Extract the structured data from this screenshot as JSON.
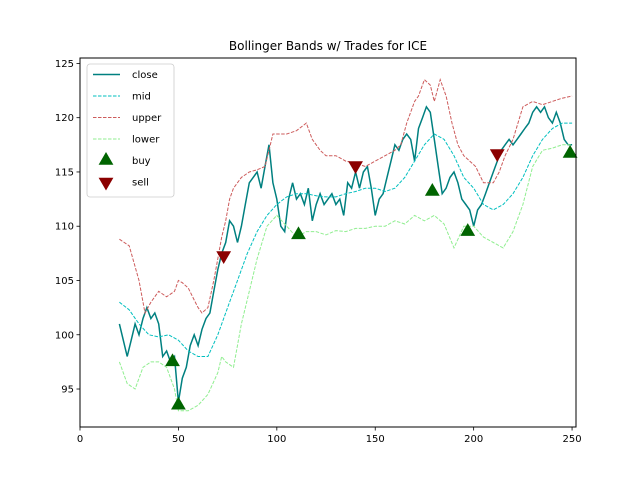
{
  "chart_data": {
    "type": "line",
    "title": "Bollinger Bands w/ Trades for ICE",
    "xlabel": "",
    "ylabel": "",
    "xlim": [
      0,
      252
    ],
    "ylim": [
      91.5,
      125.5
    ],
    "xticks": [
      0,
      50,
      100,
      150,
      200,
      250
    ],
    "yticks": [
      95,
      100,
      105,
      110,
      115,
      120,
      125
    ],
    "grid": false,
    "legend_position": "top-left",
    "series": [
      {
        "name": "close",
        "color": "#008080",
        "style": "solid",
        "x": [
          20,
          22,
          24,
          26,
          28,
          30,
          32,
          34,
          36,
          38,
          40,
          42,
          44,
          46,
          48,
          50,
          52,
          54,
          56,
          58,
          60,
          62,
          64,
          66,
          68,
          70,
          72,
          74,
          76,
          78,
          80,
          82,
          84,
          86,
          88,
          90,
          92,
          94,
          96,
          98,
          100,
          102,
          104,
          106,
          108,
          110,
          112,
          114,
          116,
          118,
          120,
          122,
          124,
          126,
          128,
          130,
          132,
          134,
          136,
          138,
          140,
          142,
          144,
          146,
          148,
          150,
          152,
          154,
          156,
          158,
          160,
          162,
          164,
          166,
          168,
          170,
          172,
          174,
          176,
          178,
          180,
          182,
          184,
          186,
          188,
          190,
          192,
          194,
          196,
          198,
          200,
          202,
          204,
          206,
          208,
          210,
          212,
          214,
          216,
          218,
          220,
          222,
          224,
          226,
          228,
          230,
          232,
          234,
          236,
          238,
          240,
          242,
          244,
          246,
          248,
          250
        ],
        "values": [
          101.0,
          99.5,
          98.0,
          99.5,
          101.0,
          100.0,
          101.5,
          102.5,
          101.5,
          102.0,
          101.0,
          98.0,
          98.5,
          97.5,
          98.0,
          93.8,
          96.0,
          97.0,
          99.0,
          100.0,
          99.0,
          100.5,
          101.5,
          102.0,
          104.0,
          106.0,
          107.5,
          108.5,
          110.5,
          110.0,
          108.5,
          110.0,
          112.0,
          114.0,
          114.5,
          115.0,
          113.5,
          115.5,
          117.5,
          114.0,
          112.5,
          110.0,
          109.5,
          112.5,
          114.0,
          112.5,
          113.0,
          112.0,
          113.5,
          110.5,
          112.0,
          113.0,
          112.0,
          112.5,
          113.0,
          112.0,
          112.5,
          111.0,
          114.0,
          113.5,
          115.0,
          113.5,
          115.0,
          115.5,
          113.5,
          111.0,
          112.5,
          113.0,
          114.5,
          116.0,
          117.5,
          117.0,
          118.0,
          118.5,
          118.0,
          116.0,
          119.0,
          120.0,
          121.0,
          120.5,
          118.0,
          115.5,
          113.0,
          113.5,
          114.5,
          115.0,
          114.0,
          112.5,
          112.0,
          111.5,
          110.0,
          111.5,
          112.0,
          113.0,
          114.0,
          115.0,
          116.0,
          117.0,
          117.5,
          118.0,
          117.5,
          118.0,
          118.5,
          119.0,
          119.5,
          120.5,
          121.0,
          120.5,
          121.0,
          120.0,
          119.5,
          120.5,
          119.5,
          118.0,
          117.5,
          117.5
        ]
      },
      {
        "name": "mid",
        "color": "#00bfbf",
        "style": "dashed",
        "x": [
          20,
          25,
          30,
          35,
          40,
          45,
          50,
          55,
          60,
          65,
          70,
          75,
          80,
          85,
          90,
          95,
          100,
          105,
          110,
          115,
          120,
          125,
          130,
          135,
          140,
          145,
          150,
          155,
          160,
          165,
          170,
          175,
          180,
          185,
          190,
          195,
          200,
          205,
          210,
          215,
          220,
          225,
          230,
          235,
          240,
          245,
          250
        ],
        "values": [
          103.0,
          102.3,
          101.0,
          100.0,
          99.8,
          100.0,
          99.5,
          98.5,
          98.0,
          98.0,
          100.0,
          102.5,
          105.0,
          107.5,
          109.5,
          111.0,
          112.0,
          112.7,
          113.0,
          113.0,
          112.8,
          112.7,
          112.7,
          113.0,
          113.2,
          113.5,
          113.5,
          113.2,
          113.5,
          114.5,
          116.0,
          117.5,
          118.5,
          118.0,
          116.5,
          114.5,
          113.5,
          112.0,
          111.5,
          112.0,
          113.0,
          114.5,
          116.5,
          118.0,
          119.0,
          119.5,
          119.5
        ]
      },
      {
        "name": "upper",
        "color": "#cd5c5c",
        "style": "dashed",
        "x": [
          20,
          25,
          30,
          33,
          36,
          40,
          44,
          48,
          50,
          52,
          55,
          58,
          60,
          62,
          65,
          68,
          70,
          72,
          74,
          76,
          78,
          82,
          86,
          90,
          94,
          96,
          98,
          100,
          105,
          110,
          115,
          118,
          120,
          122,
          125,
          130,
          135,
          140,
          145,
          150,
          155,
          160,
          163,
          166,
          170,
          172,
          175,
          178,
          180,
          183,
          186,
          189,
          192,
          195,
          198,
          201,
          205,
          210,
          213,
          216,
          220,
          225,
          230,
          235,
          240,
          245,
          250
        ],
        "values": [
          108.8,
          108.2,
          105.0,
          102.0,
          103.0,
          104.0,
          103.5,
          104.0,
          105.0,
          104.8,
          104.3,
          103.2,
          102.5,
          102.0,
          102.5,
          105.0,
          107.0,
          109.0,
          110.5,
          112.5,
          113.5,
          114.5,
          115.0,
          115.2,
          115.5,
          117.0,
          118.5,
          118.5,
          118.5,
          118.8,
          119.5,
          118.0,
          117.5,
          117.0,
          116.5,
          116.5,
          116.0,
          115.8,
          115.5,
          116.0,
          116.5,
          117.0,
          117.5,
          119.5,
          121.5,
          122.0,
          123.5,
          123.0,
          121.5,
          123.5,
          122.0,
          119.5,
          117.5,
          116.5,
          116.0,
          115.5,
          114.0,
          114.0,
          115.0,
          116.5,
          118.0,
          121.0,
          121.5,
          121.2,
          121.5,
          121.8,
          122.0
        ]
      },
      {
        "name": "lower",
        "color": "#90ee90",
        "style": "dashed",
        "x": [
          20,
          24,
          28,
          32,
          36,
          40,
          44,
          48,
          50,
          55,
          60,
          65,
          70,
          72,
          74,
          78,
          82,
          86,
          90,
          95,
          100,
          105,
          110,
          115,
          120,
          125,
          130,
          135,
          140,
          145,
          150,
          155,
          160,
          165,
          170,
          175,
          180,
          185,
          190,
          195,
          200,
          205,
          210,
          215,
          220,
          225,
          230,
          235,
          240,
          245,
          250
        ],
        "values": [
          97.5,
          95.5,
          95.0,
          97.0,
          97.5,
          97.5,
          97.0,
          95.0,
          93.0,
          93.0,
          93.5,
          94.5,
          96.5,
          98.0,
          97.5,
          97.0,
          101.0,
          104.0,
          107.0,
          110.0,
          111.0,
          110.0,
          109.0,
          109.5,
          109.5,
          109.2,
          109.6,
          109.5,
          109.8,
          109.8,
          110.0,
          110.0,
          110.5,
          110.2,
          111.0,
          110.5,
          111.0,
          110.2,
          108.0,
          110.0,
          110.0,
          109.0,
          108.5,
          108.0,
          109.5,
          112.0,
          115.5,
          117.0,
          117.2,
          117.5,
          117.5
        ]
      }
    ],
    "trades": [
      {
        "name": "buy",
        "color": "#006400",
        "marker": "triangle-up",
        "points": [
          {
            "x": 47,
            "y": 97.5
          },
          {
            "x": 50,
            "y": 93.5
          },
          {
            "x": 111,
            "y": 109.2
          },
          {
            "x": 179,
            "y": 113.2
          },
          {
            "x": 197,
            "y": 109.5
          },
          {
            "x": 249,
            "y": 116.7
          }
        ]
      },
      {
        "name": "sell",
        "color": "#8b0000",
        "marker": "triangle-down",
        "points": [
          {
            "x": 73,
            "y": 107.3
          },
          {
            "x": 140,
            "y": 115.6
          },
          {
            "x": 212,
            "y": 116.7
          }
        ]
      }
    ]
  }
}
